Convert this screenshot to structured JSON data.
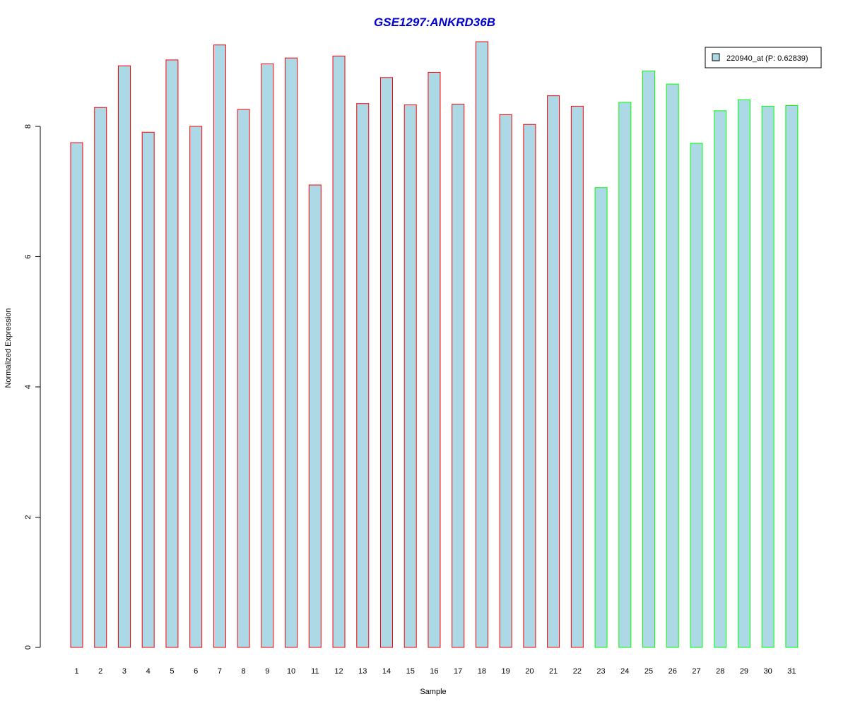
{
  "chart_data": {
    "type": "bar",
    "title": "GSE1297:ANKRD36B",
    "xlabel": "Sample",
    "ylabel": "Normalized Expression",
    "ylim": [
      0,
      9.4
    ],
    "yticks": [
      "0",
      "2",
      "4",
      "6",
      "8"
    ],
    "categories": [
      "1",
      "2",
      "3",
      "4",
      "5",
      "6",
      "7",
      "8",
      "9",
      "10",
      "11",
      "12",
      "13",
      "14",
      "15",
      "16",
      "17",
      "18",
      "19",
      "20",
      "21",
      "22",
      "23",
      "24",
      "25",
      "26",
      "27",
      "28",
      "29",
      "30",
      "31"
    ],
    "values": [
      7.75,
      8.29,
      8.93,
      7.91,
      9.02,
      8.0,
      9.25,
      8.26,
      8.96,
      9.05,
      7.1,
      9.08,
      8.35,
      8.75,
      8.33,
      8.83,
      8.34,
      9.3,
      8.18,
      8.03,
      8.47,
      8.31,
      7.06,
      8.37,
      8.85,
      8.65,
      7.74,
      8.24,
      8.41,
      8.31,
      8.32
    ],
    "groups": [
      "case",
      "case",
      "case",
      "case",
      "case",
      "case",
      "case",
      "case",
      "case",
      "case",
      "case",
      "case",
      "case",
      "case",
      "case",
      "case",
      "case",
      "case",
      "case",
      "case",
      "case",
      "case",
      "control",
      "control",
      "control",
      "control",
      "control",
      "control",
      "control",
      "control",
      "control"
    ],
    "legend": {
      "label": "220940_at (P: 0.62839)",
      "position": "top-right"
    },
    "colors": {
      "fill": "#add8e6",
      "case_border": "#ff0000",
      "control_border": "#00ff00",
      "title": "#0000cc",
      "axis": "#000000"
    },
    "grid": false
  }
}
